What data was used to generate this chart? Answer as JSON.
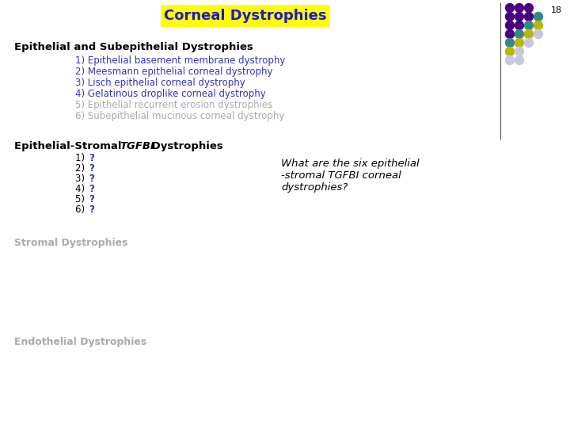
{
  "title": "Corneal Dystrophies",
  "title_bg": "#FFFF00",
  "title_color": "#1a1aCC",
  "page_number": "18",
  "section1_header": "Epithelial and Subepithelial Dystrophies",
  "section1_items_blue": [
    "1) Epithelial basement membrane dystrophy",
    "2) Meesmann epithelial corneal dystrophy",
    "3) Lisch epithelial corneal dystrophy",
    "4) Gelatinous droplike corneal dystrophy"
  ],
  "section1_items_gray": [
    "5) Epithelial recurrent erosion dystrophies",
    "6) Subepithelial mucinous corneal dystrophy"
  ],
  "section2_header_pre": "Epithelial-Stromal ",
  "section2_header_italic": "TGFBI",
  "section2_header_post": " Dystrophies",
  "section2_items": [
    "1) ",
    "2) ",
    "3) ",
    "4) ",
    "5) ",
    "6) "
  ],
  "question_text": "What are the six epithelial\n-stromal TGFBI corneal\ndystrophies?",
  "section3_header": "Stromal Dystrophies",
  "section4_header": "Endothelial Dystrophies",
  "blue_color": "#3333BB",
  "gray_color": "#AAAAAA",
  "background_color": "#FFFFFF",
  "dot_rows": [
    [
      "#4B0082",
      "#4B0082",
      "#4B0082"
    ],
    [
      "#4B0082",
      "#4B0082",
      "#4B0082",
      "#2E8B8B"
    ],
    [
      "#4B0082",
      "#4B0082",
      "#2E8B8B",
      "#B8B800"
    ],
    [
      "#4B0082",
      "#2E8B8B",
      "#B8B800",
      "#C8C8DC"
    ],
    [
      "#2E8B8B",
      "#B8B800",
      "#C8C8DC"
    ],
    [
      "#B8B800",
      "#C8C8DC"
    ],
    [
      "#C8C8DC",
      "#C8C8DC"
    ]
  ]
}
